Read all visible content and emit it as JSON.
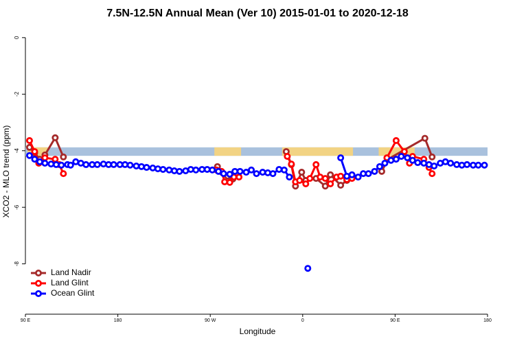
{
  "chart_data": {
    "type": "line",
    "title": "7.5N-12.5N Annual Mean (Ver 10)   2015-01-01 to 2020-12-18",
    "x_label": "Longitude",
    "y_label": "XCO2 - MLO trend (ppm)",
    "xlim": [
      90,
      540
    ],
    "ylim": [
      -9.78,
      0.36
    ],
    "xticks": [
      {
        "value": 90,
        "label": "90 E"
      },
      180,
      {
        "value": 270,
        "label": "90 W"
      },
      {
        "value": 360,
        "label": "0"
      },
      {
        "value": 450,
        "label": "90 E"
      },
      {
        "value": 540,
        "label": "180"
      }
    ],
    "yticks": [
      0,
      -2,
      -4,
      -6,
      -8
    ],
    "legend": "bottom-left",
    "band": {
      "range": [
        -4.18,
        -3.88
      ],
      "color": "#a9c1dd",
      "land_color": "#f2d384",
      "land": [
        [
          92,
          112
        ],
        [
          274,
          300
        ],
        [
          340,
          409
        ],
        [
          434,
          469
        ]
      ]
    },
    "series": [
      {
        "name": "Land Nadir",
        "color": "#a52a2a",
        "x": [
          94,
          99,
          104,
          109,
          119,
          127,
          200,
          277,
          282,
          287,
          292,
          330,
          344,
          349,
          353,
          359,
          363,
          373,
          382,
          387,
          397,
          403,
          420,
          437,
          443,
          479,
          486
        ],
        "values": [
          -3.88,
          -4.08,
          -4.3,
          -4.15,
          -3.54,
          -4.22,
          null,
          -4.56,
          -4.78,
          -4.9,
          -5.0,
          null,
          -4.03,
          -4.49,
          -5.25,
          -4.76,
          -5.05,
          -4.98,
          -5.25,
          -4.85,
          -5.22,
          -5.05,
          null,
          -4.73,
          -4.3,
          -3.56,
          -4.22
        ]
      },
      {
        "name": "Land Glint",
        "color": "#ff0000",
        "x": [
          94,
          99,
          103,
          109,
          119,
          123,
          127,
          200,
          276,
          281,
          284,
          289,
          293,
          298,
          330,
          345,
          349,
          353,
          357,
          363,
          367,
          373,
          377,
          382,
          387,
          393,
          397,
          403,
          408,
          420,
          442,
          451,
          459,
          464,
          467,
          478,
          483,
          486
        ],
        "values": [
          -3.64,
          -4.03,
          -4.44,
          -4.25,
          -4.3,
          -4.49,
          -4.81,
          null,
          -4.68,
          -4.73,
          -5.1,
          -5.12,
          -4.93,
          -4.93,
          null,
          -4.2,
          -4.47,
          -5.1,
          -5.05,
          -5.17,
          -4.98,
          -4.49,
          -4.93,
          -4.98,
          -5.17,
          -4.93,
          -4.9,
          -5.02,
          -4.98,
          null,
          -4.25,
          -3.64,
          -4.03,
          -4.44,
          -4.2,
          -4.3,
          -4.59,
          -4.81
        ]
      },
      {
        "name": "Ocean Glint",
        "color": "#0000ff",
        "x": [
          94,
          99,
          104,
          109,
          115,
          120,
          125,
          131,
          134,
          139,
          144,
          149,
          155,
          160,
          166,
          171,
          176,
          182,
          187,
          192,
          198,
          203,
          208,
          214,
          219,
          224,
          230,
          235,
          240,
          246,
          251,
          256,
          262,
          267,
          272,
          278,
          283,
          289,
          294,
          299,
          305,
          310,
          315,
          321,
          326,
          331,
          337,
          342,
          347,
          355,
          365,
          380,
          397,
          403,
          408,
          414,
          419,
          424,
          430,
          435,
          440,
          446,
          451,
          456,
          462,
          467,
          472,
          478,
          483,
          488,
          494,
          499,
          504,
          510,
          515,
          520,
          526,
          531,
          537
        ],
        "values": [
          -4.17,
          -4.3,
          -4.39,
          -4.44,
          -4.47,
          -4.49,
          -4.51,
          -4.49,
          -4.51,
          -4.39,
          -4.44,
          -4.49,
          -4.49,
          -4.49,
          -4.47,
          -4.49,
          -4.49,
          -4.49,
          -4.49,
          -4.51,
          -4.54,
          -4.56,
          -4.59,
          -4.61,
          -4.64,
          -4.66,
          -4.68,
          -4.71,
          -4.73,
          -4.71,
          -4.66,
          -4.68,
          -4.66,
          -4.66,
          -4.68,
          -4.73,
          -4.81,
          -4.83,
          -4.73,
          -4.73,
          -4.76,
          -4.68,
          -4.81,
          -4.76,
          -4.78,
          -4.81,
          -4.66,
          -4.68,
          -4.93,
          null,
          -8.16,
          null,
          -4.25,
          -4.9,
          -4.85,
          -4.93,
          -4.81,
          -4.81,
          -4.73,
          -4.56,
          -4.44,
          -4.34,
          -4.3,
          -4.2,
          -4.25,
          -4.34,
          -4.42,
          -4.44,
          -4.49,
          -4.54,
          -4.44,
          -4.39,
          -4.44,
          -4.49,
          -4.51,
          -4.49,
          -4.51,
          -4.51,
          -4.51
        ]
      }
    ]
  }
}
